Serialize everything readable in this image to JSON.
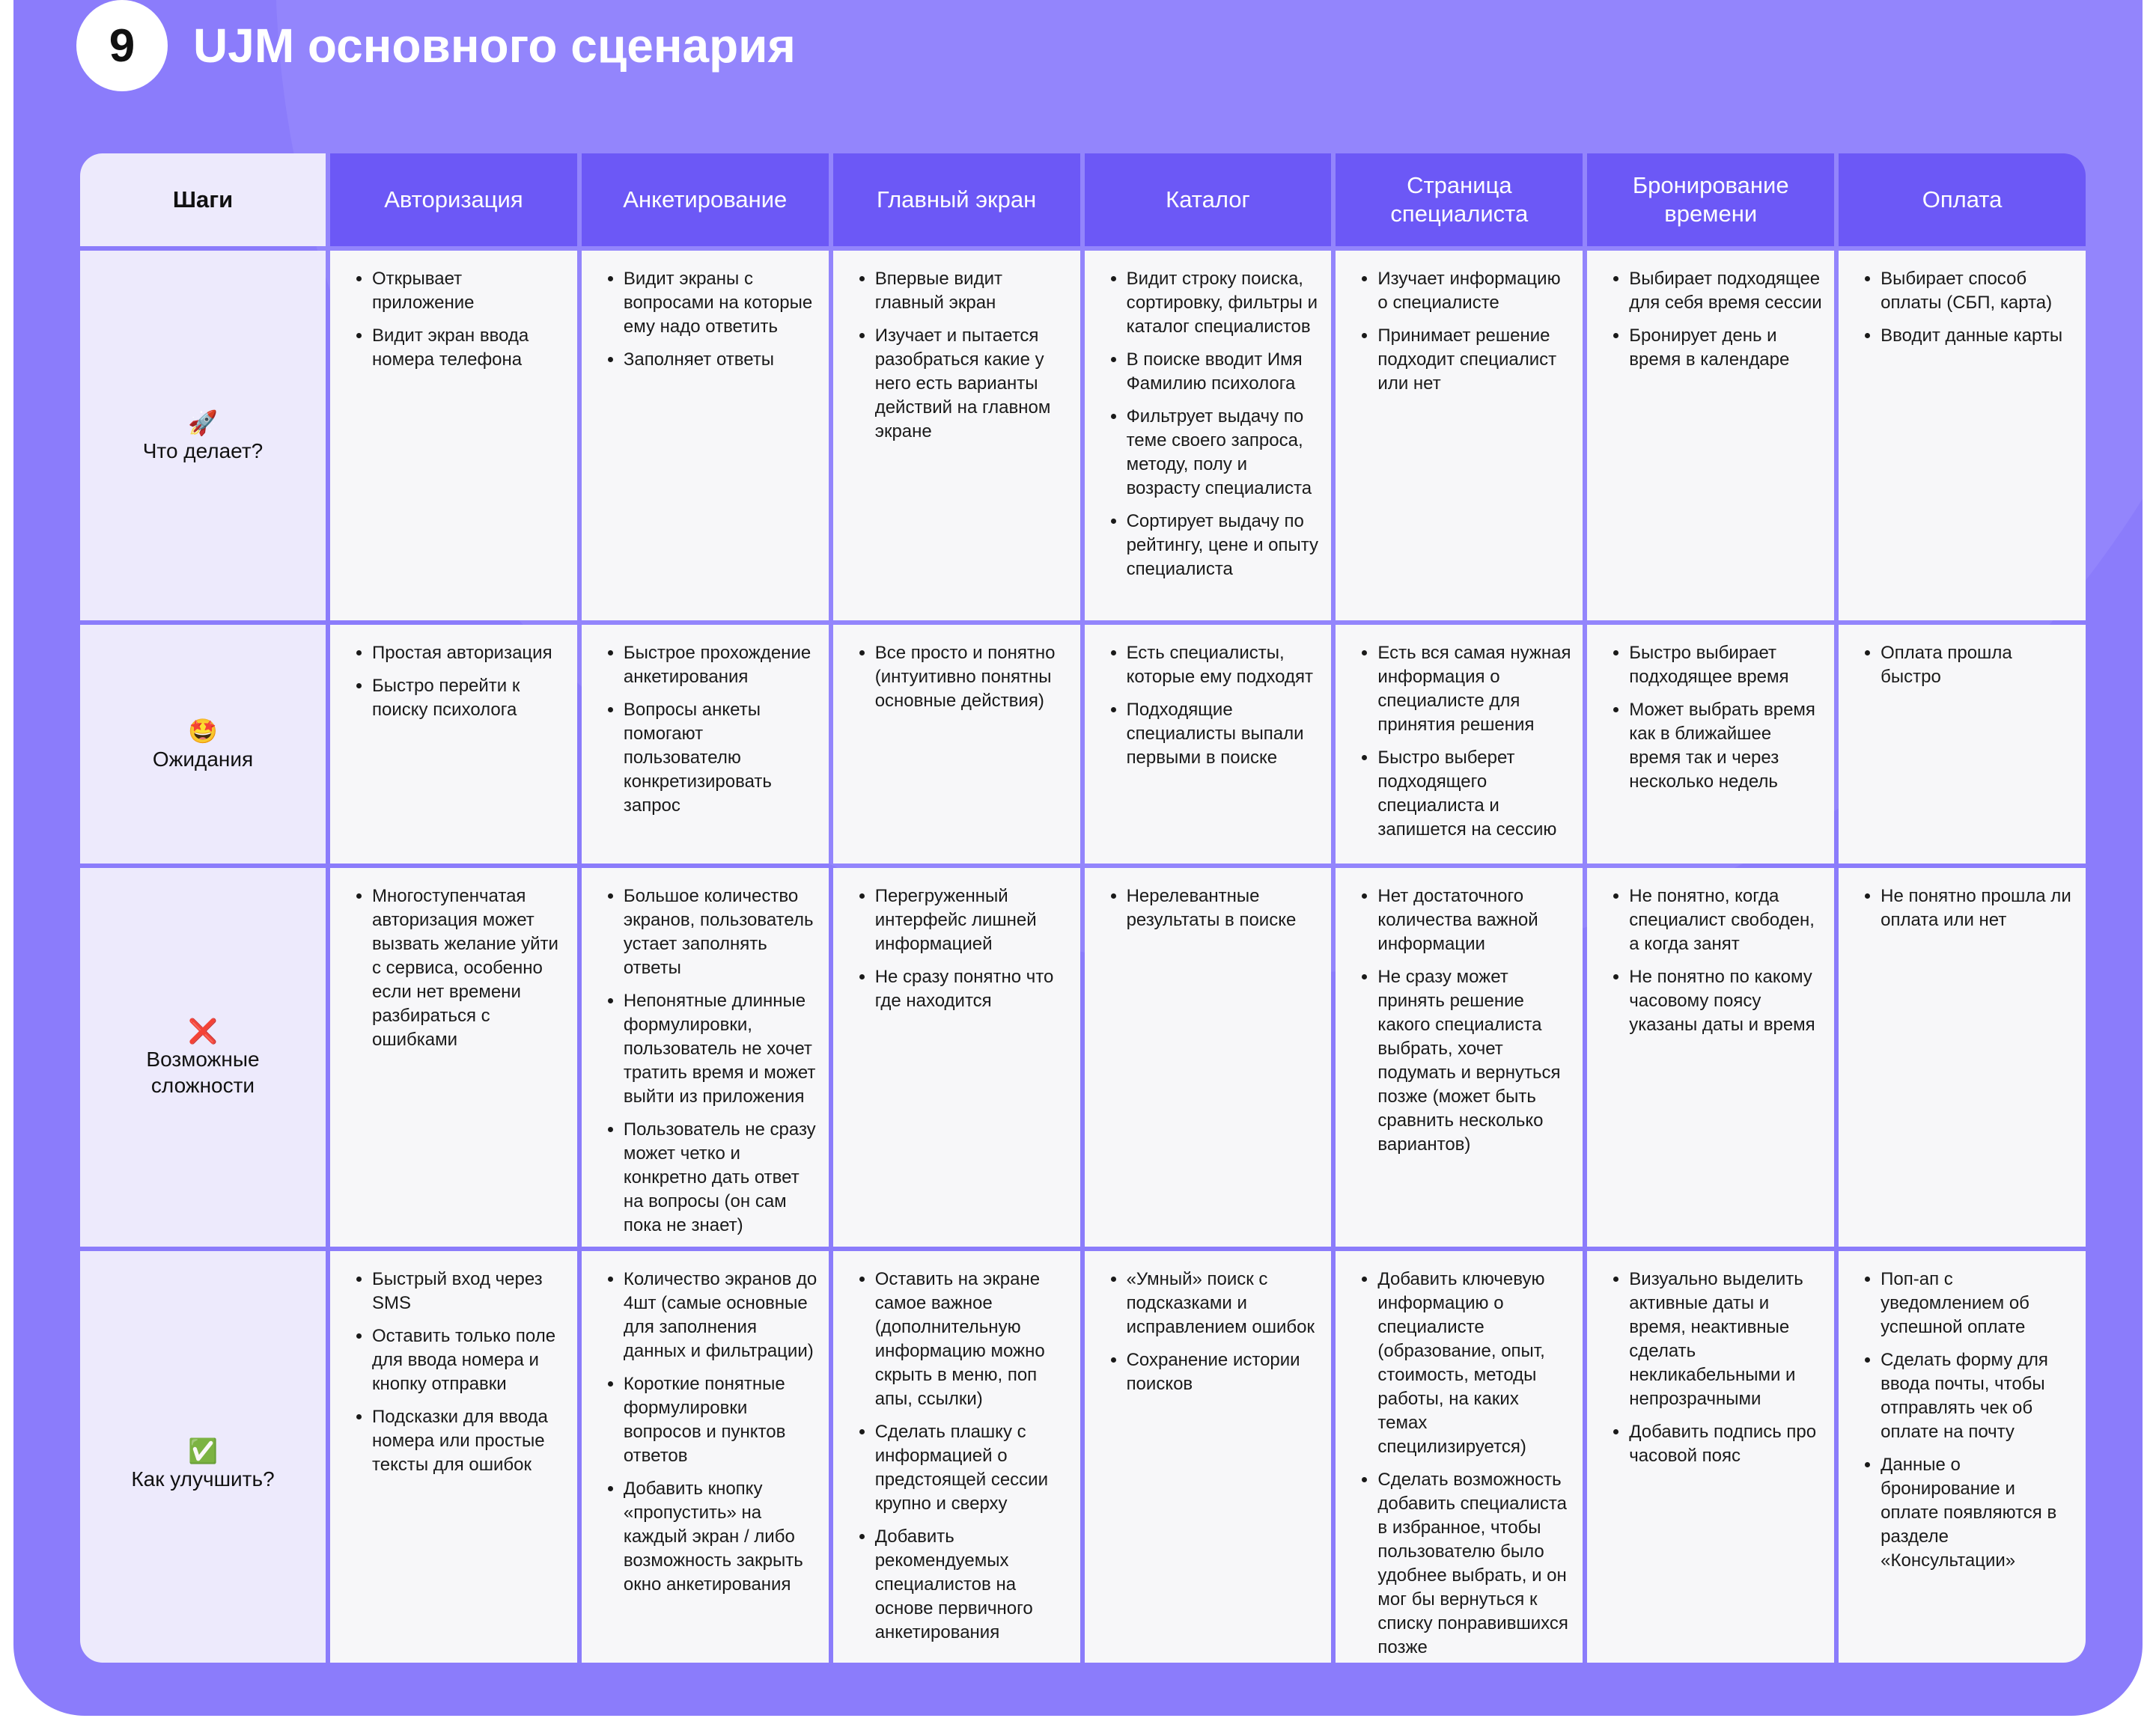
{
  "header": {
    "number": "9",
    "title": "UJM основного сценария"
  },
  "table": {
    "corner": "Шаги",
    "columns": [
      "Авторизация",
      "Анкетирование",
      "Главный экран",
      "Каталог",
      "Страница специалиста",
      "Бронирование времени",
      "Оплата"
    ],
    "rows": [
      {
        "icon": "🚀",
        "label": "Что делает?",
        "cells": [
          [
            "Открывает приложение",
            "Видит экран ввода номера телефона"
          ],
          [
            "Видит экраны с вопросами на которые ему надо ответить",
            "Заполняет ответы"
          ],
          [
            "Впервые видит главный экран",
            "Изучает и пытается разобраться какие у него есть варианты действий на главном экране"
          ],
          [
            "Видит строку поиска, сортировку, фильтры и каталог специалистов",
            "В поиске вводит Имя Фамилию психолога",
            "Фильтрует выдачу по теме своего запроса, методу, полу и возрасту специалиста",
            "Сортирует выдачу по рейтингу, цене и опыту специалиста"
          ],
          [
            "Изучает информацию о специалисте",
            "Принимает решение подходит специалист или нет"
          ],
          [
            "Выбирает подходящее для себя время сессии",
            "Бронирует день и время в календаре"
          ],
          [
            "Выбирает способ оплаты (СБП, карта)",
            "Вводит данные карты"
          ]
        ]
      },
      {
        "icon": "🤩",
        "label": "Ожидания",
        "cells": [
          [
            "Простая авторизация",
            "Быстро перейти к поиску психолога"
          ],
          [
            "Быстрое прохождение анкетирования",
            "Вопросы анкеты помогают пользователю конкретизировать запрос"
          ],
          [
            "Все просто и понятно (интуитивно понятны основные действия)"
          ],
          [
            "Есть специалисты, которые ему подходят",
            "Подходящие специалисты выпали первыми в поиске"
          ],
          [
            "Есть вся самая нужная информация о специалисте для принятия решения",
            "Быстро выберет подходящего специалиста и запишется на сессию"
          ],
          [
            "Быстро выбирает подходящее время",
            "Может выбрать время как в ближайшее время так и через несколько недель"
          ],
          [
            "Оплата прошла быстро"
          ]
        ]
      },
      {
        "icon": "❌",
        "label": "Возможные сложности",
        "cells": [
          [
            "Многоступенчатая авторизация может вызвать желание уйти с сервиса, особенно если нет времени разбираться с ошибками"
          ],
          [
            "Большое количество экранов, пользователь устает заполнять ответы",
            "Непонятные длинные формулировки, пользователь не хочет тратить время и может выйти из приложения",
            "Пользователь не сразу может четко и конкретно дать ответ на вопросы (он сам пока не знает)"
          ],
          [
            "Перегруженный интерфейс лишней информацией",
            "Не сразу понятно что где находится"
          ],
          [
            "Нерелевантные результаты в поиске"
          ],
          [
            "Нет достаточного количества важной информации",
            "Не сразу может принять решение какого специалиста выбрать, хочет подумать и вернуться позже (может быть сравнить несколько вариантов)"
          ],
          [
            "Не понятно, когда специалист свободен, а когда занят",
            "Не понятно по какому часовому поясу указаны даты и время"
          ],
          [
            "Не понятно прошла ли оплата или нет"
          ]
        ]
      },
      {
        "icon": "✅",
        "label": "Как улучшить?",
        "cells": [
          [
            "Быстрый вход через SMS",
            "Оставить только поле для ввода номера и кнопку отправки",
            "Подсказки для ввода номера или простые тексты для ошибок"
          ],
          [
            "Количество экранов до 4шт (самые основные для заполнения данных и фильтрации)",
            "Короткие понятные формулировки вопросов и пунктов ответов",
            "Добавить кнопку «пропустить» на каждый экран / либо возможность закрыть окно анкетирования"
          ],
          [
            "Оставить на экране самое важное (дополнительную информацию можно скрыть в меню, поп апы, ссылки)",
            "Сделать плашку с информацией о предстоящей сессии крупно и сверху",
            "Добавить рекомендуемых специалистов на основе первичного анкетирования"
          ],
          [
            "«Умный» поиск с подсказками и исправлением ошибок",
            "Сохранение истории поисков"
          ],
          [
            "Добавить ключевую информацию о специалисте (образование, опыт, стоимость, методы работы, на каких темах специлизируется)",
            "Сделать возможность добавить специалиста в избранное, чтобы пользователю было удобнее выбрать, и он мог бы вернуться к списку понравившихся позже"
          ],
          [
            "Визуально выделить активные даты и время, неактивные сделать некликабельными и непрозрачными",
            "Добавить подпись про часовой пояс"
          ],
          [
            "Поп-ап с уведомлением об успешной оплате",
            "Сделать форму для ввода почты, чтобы отправлять чек об оплате на почту",
            "Данные о бронирование и оплате появляются в разделе «Консультации»"
          ]
        ]
      }
    ]
  }
}
